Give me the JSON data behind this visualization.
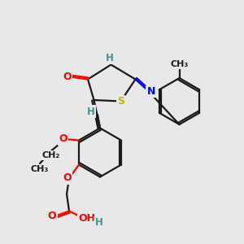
{
  "bg": "#e8e8e8",
  "bond_color": "#1a1a1a",
  "bond_lw": 1.6,
  "colors": {
    "O": "#ff0000",
    "N": "#0000ff",
    "S": "#b8b800",
    "H_label": "#4a9090",
    "C": "#1a1a1a"
  },
  "font_size": 9,
  "xlim": [
    0,
    10
  ],
  "ylim": [
    0,
    10
  ]
}
